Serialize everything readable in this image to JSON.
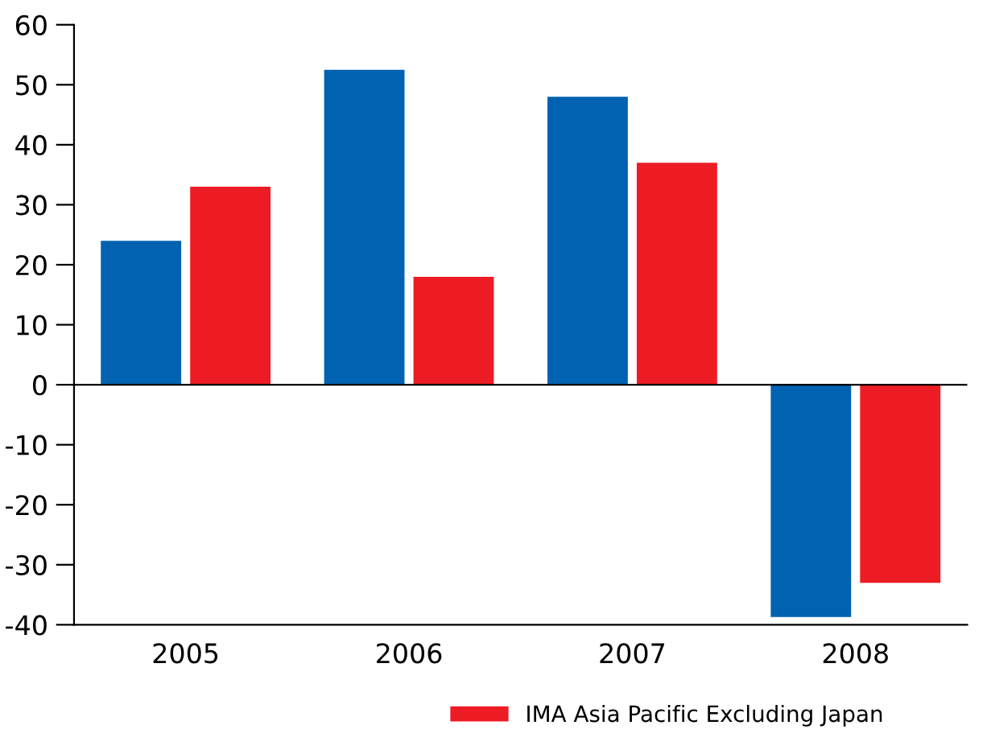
{
  "chart_data": {
    "type": "bar",
    "categories": [
      "2005",
      "2006",
      "2007",
      "2008"
    ],
    "series": [
      {
        "color": "#0062b1",
        "values": [
          24,
          52.5,
          48,
          -38.7
        ]
      },
      {
        "name": "IMA Asia Pacific Excluding Japan",
        "color": "#ed1c24",
        "values": [
          33,
          18,
          37,
          -33
        ]
      }
    ],
    "ylim": [
      -40,
      60
    ],
    "yticks": [
      -40,
      -30,
      -20,
      -10,
      0,
      10,
      20,
      30,
      40,
      50,
      60
    ],
    "ref_lines": [
      {
        "axis": "y",
        "value": 0,
        "color": "#000000"
      }
    ],
    "grid": false,
    "legend": "bottom"
  }
}
